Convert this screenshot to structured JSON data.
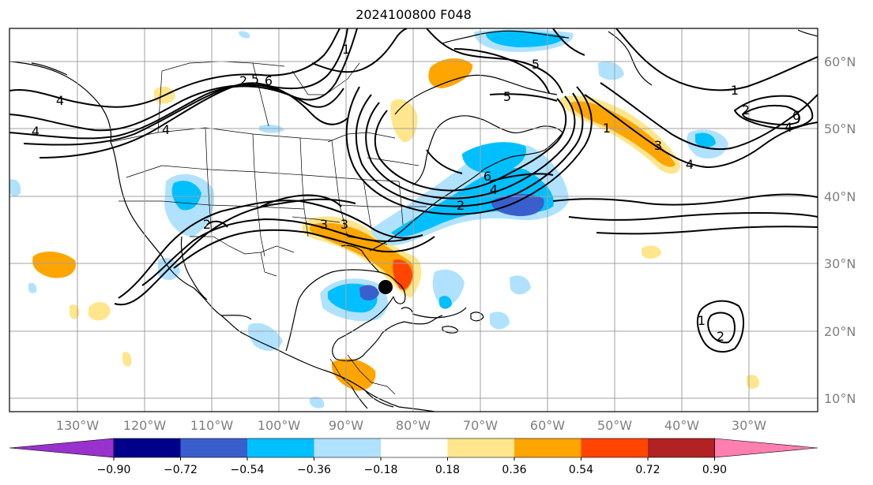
{
  "title": "2024100800 F048",
  "lon_labels": [
    "130°W",
    "120°W",
    "110°W",
    "100°W",
    "90°W",
    "80°W",
    "70°W",
    "60°W",
    "50°W",
    "40°W",
    "30°W"
  ],
  "lat_labels": [
    "60°N",
    "50°N",
    "40°N",
    "30°N",
    "20°N",
    "10°N"
  ],
  "colorbar": {
    "ticks": [
      "−0.90",
      "−0.72",
      "−0.54",
      "−0.36",
      "−0.18",
      "0.18",
      "0.36",
      "0.54",
      "0.72",
      "0.90"
    ],
    "colors": [
      "#9932cc",
      "#00008b",
      "#3a5fcd",
      "#00bfff",
      "#b0e2ff",
      "#ffffff",
      "#ffe68c",
      "#ffa500",
      "#ff4500",
      "#b22222",
      "#ff7fb0"
    ]
  },
  "contour_labels": [
    "4",
    "4",
    "4",
    "2",
    "5",
    "6",
    "1",
    "2",
    "5",
    "3",
    "4",
    "6",
    "2",
    "3",
    "1",
    "3",
    "4",
    "6",
    "1",
    "5",
    "1",
    "2",
    "2",
    "4"
  ],
  "colors": {
    "land_line": "#000000",
    "grid": "#a0a0a0",
    "contour": "#000000",
    "marker": "#000000"
  }
}
